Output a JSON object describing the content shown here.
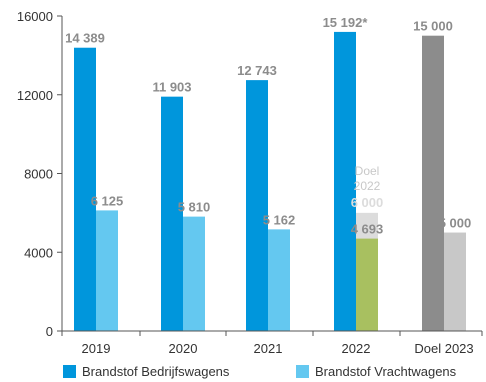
{
  "chart_data": {
    "type": "bar",
    "categories": [
      "2019",
      "2020",
      "2021",
      "2022",
      "Doel 2023"
    ],
    "ylim": [
      0,
      16000
    ],
    "yticks": [
      0,
      4000,
      8000,
      12000,
      16000
    ],
    "ytick_labels": [
      "0",
      "4000",
      "8000",
      "12000",
      "16000"
    ],
    "series": [
      {
        "name": "Brandstof Bedrijfswagens",
        "color": "#0096dc",
        "values": [
          14389,
          11903,
          12743,
          15192,
          15000
        ],
        "labels": [
          "14 389",
          "11 903",
          "12 743",
          "15 192*",
          "15 000"
        ],
        "point_colors": [
          "#0096dc",
          "#0096dc",
          "#0096dc",
          "#0096dc",
          "#8c8c8c"
        ],
        "label_colors": [
          "#8c8c8c",
          "#8c8c8c",
          "#8c8c8c",
          "#8c8c8c",
          "#8c8c8c"
        ]
      },
      {
        "name": "Brandstof Vrachtwagens",
        "color": "#64c8f0",
        "values": [
          6125,
          5810,
          5162,
          4693,
          5000
        ],
        "labels": [
          "6 125",
          "5 810",
          "5 162",
          "4 693",
          "5 000"
        ],
        "point_colors": [
          "#64c8f0",
          "#64c8f0",
          "#64c8f0",
          "#a8c060",
          "#c8c8c8"
        ],
        "label_colors": [
          "#8c8c8c",
          "#8c8c8c",
          "#8c8c8c",
          "#8c8c8c",
          "#8c8c8c"
        ]
      }
    ],
    "target_2022": {
      "value": 6000,
      "label": "6 000",
      "note_line1": "Doel",
      "note_line2": "2022",
      "color": "#dcdcdc",
      "label_color": "#ffffff"
    },
    "legend_position": "bottom",
    "grid": false
  },
  "legend": {
    "items": [
      {
        "label": "Brandstof Bedrijfswagens",
        "color": "#0096dc"
      },
      {
        "label": "Brandstof Vrachtwagens",
        "color": "#64c8f0"
      }
    ]
  }
}
